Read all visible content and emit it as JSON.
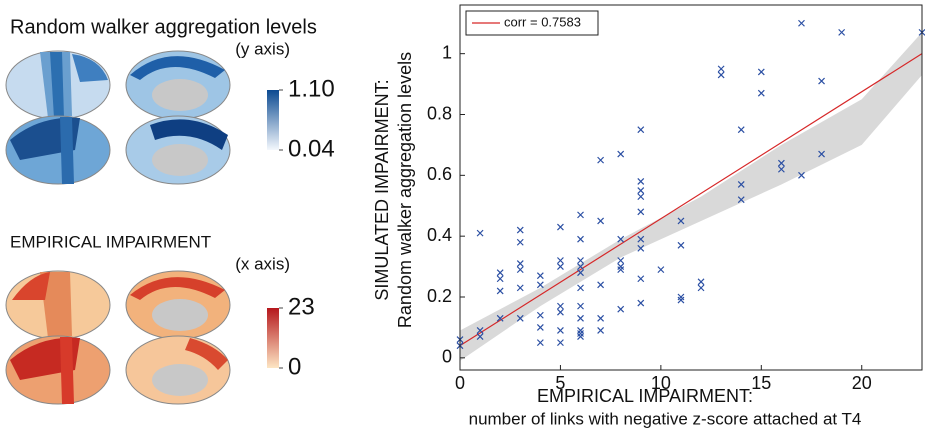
{
  "legends": [
    {
      "title": "Random walker aggregation levels",
      "note": "(y axis)",
      "colorbar": {
        "lim": [
          0.04,
          1.1
        ],
        "ticks": [
          {
            "value": 1.1,
            "label": "1.10"
          },
          0.04
        ]
      }
    },
    {
      "title": "EMPIRICAL IMPAIRMENT",
      "note": "(x axis)",
      "colorbar": {
        "lim": [
          0,
          23
        ],
        "ticks": [
          23,
          0
        ]
      }
    }
  ],
  "chart_data": {
    "type": "scatter",
    "xlabel": [
      "EMPIRICAL IMPAIRMENT:",
      "number of links with negative z-score attached at T4"
    ],
    "ylabel": [
      "SIMULATED IMPAIRMENT:",
      "Random walker aggregation levels"
    ],
    "xlim": [
      0,
      23
    ],
    "ylim": [
      -0.04,
      1.16
    ],
    "xticks": [
      0,
      5,
      10,
      15,
      20
    ],
    "yticks": [
      0,
      0.2,
      0.4,
      0.6,
      0.8,
      1
    ],
    "points": {
      "color": "#2b4fa3",
      "x": [
        0,
        0,
        1,
        1,
        1,
        2,
        2,
        2,
        2,
        3,
        3,
        3,
        3,
        3,
        3,
        4,
        4,
        4,
        4,
        4,
        5,
        5,
        5,
        5,
        5,
        5,
        5,
        6,
        6,
        6,
        6,
        6,
        6,
        6,
        6,
        6,
        6,
        6,
        7,
        7,
        7,
        7,
        7,
        8,
        8,
        8,
        8,
        8,
        8,
        9,
        9,
        9,
        9,
        9,
        9,
        9,
        9,
        9,
        10,
        11,
        11,
        11,
        11,
        12,
        12,
        13,
        13,
        14,
        14,
        14,
        15,
        15,
        16,
        16,
        17,
        17,
        18,
        18,
        19,
        23
      ],
      "y": [
        0.06,
        0.04,
        0.41,
        0.09,
        0.07,
        0.28,
        0.26,
        0.22,
        0.13,
        0.42,
        0.38,
        0.31,
        0.29,
        0.23,
        0.13,
        0.27,
        0.24,
        0.14,
        0.1,
        0.05,
        0.43,
        0.32,
        0.3,
        0.17,
        0.15,
        0.09,
        0.05,
        0.47,
        0.39,
        0.32,
        0.3,
        0.28,
        0.23,
        0.17,
        0.13,
        0.09,
        0.07,
        0.08,
        0.65,
        0.45,
        0.24,
        0.13,
        0.09,
        0.67,
        0.39,
        0.32,
        0.3,
        0.29,
        0.16,
        0.75,
        0.58,
        0.55,
        0.53,
        0.48,
        0.39,
        0.36,
        0.26,
        0.18,
        0.29,
        0.45,
        0.37,
        0.2,
        0.19,
        0.25,
        0.23,
        0.95,
        0.93,
        0.75,
        0.57,
        0.52,
        0.94,
        0.87,
        0.64,
        0.62,
        1.1,
        0.6,
        0.91,
        0.67,
        1.07,
        1.07
      ]
    },
    "fit": {
      "name": "corr = 0.7583",
      "color": "#d62728",
      "x": [
        0,
        23
      ],
      "y": [
        0.04,
        1.0
      ]
    },
    "band": {
      "color": "#d9d9d9",
      "x": [
        0,
        4,
        8,
        12,
        16,
        20,
        23
      ],
      "lower": [
        -0.01,
        0.17,
        0.33,
        0.45,
        0.57,
        0.7,
        0.93
      ],
      "upper": [
        0.09,
        0.23,
        0.39,
        0.53,
        0.7,
        0.85,
        1.07
      ]
    }
  }
}
